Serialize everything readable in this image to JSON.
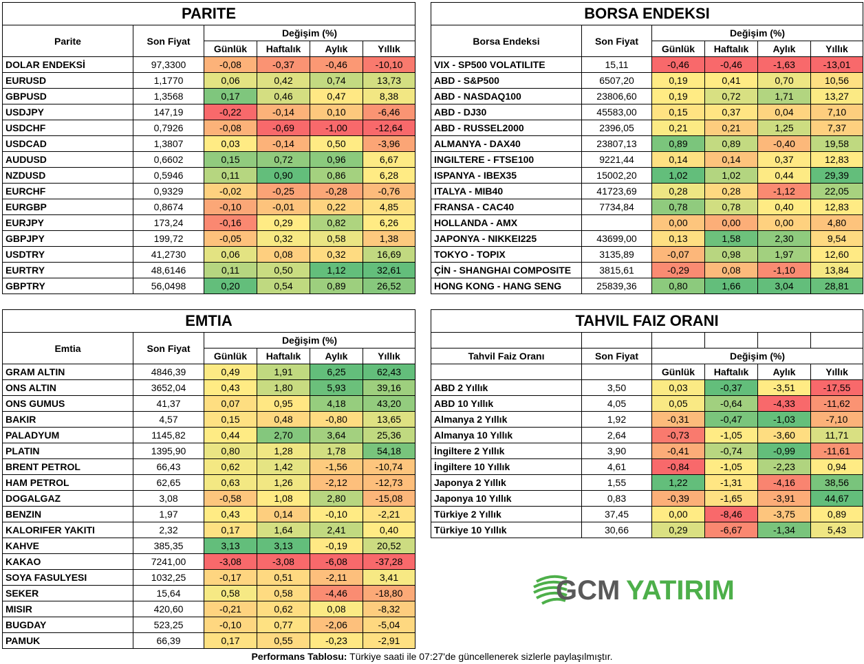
{
  "parite": {
    "title": "PARITE",
    "col_name": "Parite",
    "col_price": "Son Fiyat",
    "col_change": "Değişim (%)",
    "periods": [
      "Günlük",
      "Haftalık",
      "Aylık",
      "Yıllık"
    ],
    "rows": [
      {
        "name": "DOLAR ENDEKSİ",
        "price": "97,3300",
        "d": "-0,08",
        "w": "-0,37",
        "m": "-0,46",
        "y": "-10,10"
      },
      {
        "name": "EURUSD",
        "price": "1,1770",
        "d": "0,06",
        "w": "0,42",
        "m": "0,74",
        "y": "13,73"
      },
      {
        "name": "GBPUSD",
        "price": "1,3568",
        "d": "0,17",
        "w": "0,46",
        "m": "0,47",
        "y": "8,38"
      },
      {
        "name": "USDJPY",
        "price": "147,19",
        "d": "-0,22",
        "w": "-0,14",
        "m": "0,10",
        "y": "-6,46"
      },
      {
        "name": "USDCHF",
        "price": "0,7926",
        "d": "-0,08",
        "w": "-0,69",
        "m": "-1,00",
        "y": "-12,64"
      },
      {
        "name": "USDCAD",
        "price": "1,3807",
        "d": "0,03",
        "w": "-0,14",
        "m": "0,50",
        "y": "-3,96"
      },
      {
        "name": "AUDUSD",
        "price": "0,6602",
        "d": "0,15",
        "w": "0,72",
        "m": "0,96",
        "y": "6,67"
      },
      {
        "name": "NZDUSD",
        "price": "0,5946",
        "d": "0,11",
        "w": "0,90",
        "m": "0,86",
        "y": "6,28"
      },
      {
        "name": "EURCHF",
        "price": "0,9329",
        "d": "-0,02",
        "w": "-0,25",
        "m": "-0,28",
        "y": "-0,76"
      },
      {
        "name": "EURGBP",
        "price": "0,8674",
        "d": "-0,10",
        "w": "-0,01",
        "m": "0,22",
        "y": "4,85"
      },
      {
        "name": "EURJPY",
        "price": "173,24",
        "d": "-0,16",
        "w": "0,29",
        "m": "0,82",
        "y": "6,26"
      },
      {
        "name": "GBPJPY",
        "price": "199,72",
        "d": "-0,05",
        "w": "0,32",
        "m": "0,58",
        "y": "1,38"
      },
      {
        "name": "USDTRY",
        "price": "41,2730",
        "d": "0,06",
        "w": "0,08",
        "m": "0,32",
        "y": "16,69"
      },
      {
        "name": "EURTRY",
        "price": "48,6146",
        "d": "0,11",
        "w": "0,50",
        "m": "1,12",
        "y": "32,61"
      },
      {
        "name": "GBPTRY",
        "price": "56,0498",
        "d": "0,20",
        "w": "0,54",
        "m": "0,89",
        "y": "26,52"
      }
    ]
  },
  "borsa": {
    "title": "BORSA ENDEKSI",
    "col_name": "Borsa Endeksi",
    "col_price": "Son Fiyat",
    "col_change": "Değişim (%)",
    "periods": [
      "Günlük",
      "Haftalık",
      "Aylık",
      "Yıllık"
    ],
    "rows": [
      {
        "name": "VIX  - SP500 VOLATILITE",
        "price": "15,11",
        "d": "-0,46",
        "w": "-0,46",
        "m": "-1,63",
        "y": "-13,01"
      },
      {
        "name": "ABD - S&P500",
        "price": "6507,20",
        "d": "0,19",
        "w": "0,41",
        "m": "0,70",
        "y": "10,56"
      },
      {
        "name": "ABD - NASDAQ100",
        "price": "23806,60",
        "d": "0,19",
        "w": "0,72",
        "m": "1,71",
        "y": "13,27"
      },
      {
        "name": "ABD - DJ30",
        "price": "45583,00",
        "d": "0,15",
        "w": "0,37",
        "m": "0,04",
        "y": "7,10"
      },
      {
        "name": "ABD - RUSSEL2000",
        "price": "2396,05",
        "d": "0,21",
        "w": "0,21",
        "m": "1,25",
        "y": "7,37"
      },
      {
        "name": "ALMANYA - DAX40",
        "price": "23807,13",
        "d": "0,89",
        "w": "0,89",
        "m": "-0,40",
        "y": "19,58"
      },
      {
        "name": "INGILTERE - FTSE100",
        "price": "9221,44",
        "d": "0,14",
        "w": "0,14",
        "m": "0,37",
        "y": "12,83"
      },
      {
        "name": "ISPANYA - IBEX35",
        "price": "15002,20",
        "d": "1,02",
        "w": "1,02",
        "m": "0,44",
        "y": "29,39"
      },
      {
        "name": "ITALYA - MIB40",
        "price": "41723,69",
        "d": "0,28",
        "w": "0,28",
        "m": "-1,12",
        "y": "22,05"
      },
      {
        "name": "FRANSA - CAC40",
        "price": "7734,84",
        "d": "0,78",
        "w": "0,78",
        "m": "0,40",
        "y": "12,83"
      },
      {
        "name": "HOLLANDA - AMX",
        "price": "",
        "d": "0,00",
        "w": "0,00",
        "m": "0,00",
        "y": "4,80"
      },
      {
        "name": "JAPONYA - NIKKEI225",
        "price": "43699,00",
        "d": "0,13",
        "w": "1,58",
        "m": "2,30",
        "y": "9,54"
      },
      {
        "name": "TOKYO - TOPIX",
        "price": "3135,89",
        "d": "-0,07",
        "w": "0,98",
        "m": "1,97",
        "y": "12,60"
      },
      {
        "name": "ÇİN - SHANGHAI COMPOSITE",
        "price": "3815,61",
        "d": "-0,29",
        "w": "0,08",
        "m": "-1,10",
        "y": "13,84"
      },
      {
        "name": "HONG KONG - HANG SENG",
        "price": "25839,36",
        "d": "0,80",
        "w": "1,66",
        "m": "3,04",
        "y": "28,81"
      }
    ]
  },
  "emtia": {
    "title": "EMTIA",
    "col_name": "Emtia",
    "col_price": "Son Fiyat",
    "col_change": "Değişim (%)",
    "periods": [
      "Günlük",
      "Haftalık",
      "Aylık",
      "Yıllık"
    ],
    "rows": [
      {
        "name": "GRAM ALTIN",
        "price": "4846,39",
        "d": "0,49",
        "w": "1,91",
        "m": "6,25",
        "y": "62,43"
      },
      {
        "name": "ONS ALTIN",
        "price": "3652,04",
        "d": "0,43",
        "w": "1,80",
        "m": "5,93",
        "y": "39,16"
      },
      {
        "name": "ONS GUMUS",
        "price": "41,37",
        "d": "0,07",
        "w": "0,95",
        "m": "4,18",
        "y": "43,20"
      },
      {
        "name": "BAKIR",
        "price": "4,57",
        "d": "0,15",
        "w": "0,48",
        "m": "-0,80",
        "y": "13,65"
      },
      {
        "name": "PALADYUM",
        "price": "1145,82",
        "d": "0,44",
        "w": "2,70",
        "m": "3,64",
        "y": "25,36"
      },
      {
        "name": "PLATIN",
        "price": "1395,90",
        "d": "0,80",
        "w": "1,28",
        "m": "1,78",
        "y": "54,18"
      },
      {
        "name": "BRENT PETROL",
        "price": "66,43",
        "d": "0,62",
        "w": "1,42",
        "m": "-1,56",
        "y": "-10,74"
      },
      {
        "name": "HAM PETROL",
        "price": "62,65",
        "d": "0,63",
        "w": "1,26",
        "m": "-2,12",
        "y": "-12,73"
      },
      {
        "name": "DOGALGAZ",
        "price": "3,08",
        "d": "-0,58",
        "w": "1,08",
        "m": "2,80",
        "y": "-15,08"
      },
      {
        "name": "BENZIN",
        "price": "1,97",
        "d": "0,43",
        "w": "0,14",
        "m": "-0,10",
        "y": "-2,21"
      },
      {
        "name": "KALORIFER YAKITI",
        "price": "2,32",
        "d": "0,17",
        "w": "1,64",
        "m": "2,41",
        "y": "0,40"
      },
      {
        "name": "KAHVE",
        "price": "385,35",
        "d": "3,13",
        "w": "3,13",
        "m": "-0,19",
        "y": "20,52"
      },
      {
        "name": "KAKAO",
        "price": "7241,00",
        "d": "-3,08",
        "w": "-3,08",
        "m": "-6,08",
        "y": "-37,28"
      },
      {
        "name": "SOYA FASULYESI",
        "price": "1032,25",
        "d": "-0,17",
        "w": "0,51",
        "m": "-2,11",
        "y": "3,41"
      },
      {
        "name": "SEKER",
        "price": "15,64",
        "d": "0,58",
        "w": "0,58",
        "m": "-4,46",
        "y": "-18,80"
      },
      {
        "name": "MISIR",
        "price": "420,60",
        "d": "-0,21",
        "w": "0,62",
        "m": "0,08",
        "y": "-8,32"
      },
      {
        "name": "BUGDAY",
        "price": "523,25",
        "d": "-0,10",
        "w": "0,77",
        "m": "-2,06",
        "y": "-5,04"
      },
      {
        "name": "PAMUK",
        "price": "66,39",
        "d": "0,17",
        "w": "0,55",
        "m": "-0,23",
        "y": "-2,91"
      }
    ]
  },
  "tahvil": {
    "title": "TAHVIL FAIZ ORANI",
    "col_name": "Tahvil Faiz Oranı",
    "col_price": "Son Fiyat",
    "col_change": "Değişim (%)",
    "periods": [
      "Günlük",
      "Haftalık",
      "Aylık",
      "Yıllık"
    ],
    "rows": [
      {
        "name": "ABD 2 Yıllık",
        "price": "3,50",
        "d": "0,03",
        "w": "-0,37",
        "m": "-3,51",
        "y": "-17,55"
      },
      {
        "name": "ABD 10 Yıllık",
        "price": "4,05",
        "d": "0,05",
        "w": "-0,64",
        "m": "-4,33",
        "y": "-11,62"
      },
      {
        "name": "Almanya 2 Yıllık",
        "price": "1,92",
        "d": "-0,31",
        "w": "-0,47",
        "m": "-1,03",
        "y": "-7,10"
      },
      {
        "name": "Almanya 10 Yıllık",
        "price": "2,64",
        "d": "-0,73",
        "w": "-1,05",
        "m": "-3,60",
        "y": "11,71"
      },
      {
        "name": "İngiltere 2 Yıllık",
        "price": "3,90",
        "d": "-0,41",
        "w": "-0,74",
        "m": "-0,99",
        "y": "-11,61"
      },
      {
        "name": "İngiltere 10 Yıllık",
        "price": "4,61",
        "d": "-0,84",
        "w": "-1,05",
        "m": "-2,23",
        "y": "0,94"
      },
      {
        "name": "Japonya 2 Yıllık",
        "price": "1,55",
        "d": "1,22",
        "w": "-1,31",
        "m": "-4,16",
        "y": "38,56"
      },
      {
        "name": "Japonya 10 Yıllık",
        "price": "0,83",
        "d": "-0,39",
        "w": "-1,65",
        "m": "-3,91",
        "y": "44,67"
      },
      {
        "name": "Türkiye 2 Yıllık",
        "price": "37,45",
        "d": "0,00",
        "w": "-8,46",
        "m": "-3,75",
        "y": "0,89"
      },
      {
        "name": "Türkiye 10 Yıllık",
        "price": "30,66",
        "d": "0,29",
        "w": "-6,67",
        "m": "-1,34",
        "y": "5,43"
      }
    ]
  },
  "logo": {
    "part1": "GCM",
    "part2": "YATIRIM"
  },
  "footer": {
    "bold": "Performans Tablosu:",
    "text": " Türkiye saati ile 07:27'de güncellenerek sizlerle paylaşılmıştır."
  },
  "colors": {
    "red": "#f8696b",
    "orange": "#fba977",
    "yellow": "#ffeb84",
    "lightgreen": "#c9df81",
    "green": "#63be7b",
    "logo_gray": "#595959",
    "logo_green": "#4daf4a"
  }
}
